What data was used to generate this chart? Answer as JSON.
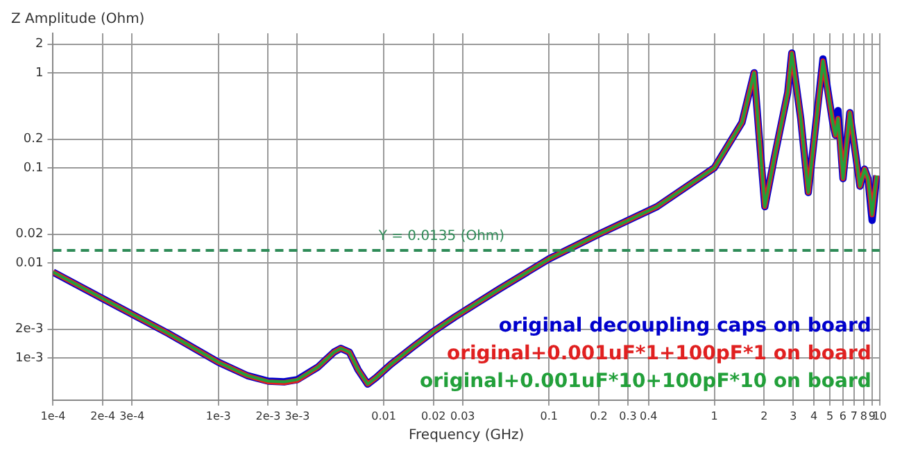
{
  "chart_data": {
    "type": "line",
    "xlabel": "Frequency (GHz)",
    "ylabel": "Z Amplitude (Ohm)",
    "log": "xy",
    "grid": true,
    "legend": "bottom right",
    "marker": "none",
    "line_style": "solid",
    "x": [
      0.0001,
      0.0002,
      0.0005,
      0.001,
      0.0015,
      0.002,
      0.0025,
      0.003,
      0.004,
      0.005,
      0.0055,
      0.0062,
      0.007,
      0.008,
      0.009,
      0.011,
      0.015,
      0.02,
      0.027,
      0.05,
      0.1,
      0.2,
      0.45,
      1,
      1.47,
      1.74,
      2.02,
      2.3,
      2.78,
      2.94,
      3.33,
      3.7,
      4.54,
      5.2,
      5.4,
      5.6,
      6.0,
      6.6,
      7.6,
      8.1,
      8.5,
      9.0,
      9.6
    ],
    "xlim": [
      0.0001,
      10
    ],
    "ylim": [
      0.00036,
      2.6
    ],
    "xticks": [
      {
        "value": 0.0001,
        "label": "1e-4"
      },
      {
        "value": 0.0002,
        "label": "2e-4"
      },
      {
        "value": 0.0003,
        "label": "3e-4"
      },
      {
        "value": 0.001,
        "label": "1e-3"
      },
      {
        "value": 0.002,
        "label": "2e-3"
      },
      {
        "value": 0.003,
        "label": "3e-3"
      },
      0.01,
      0.02,
      0.03,
      0.1,
      0.2,
      0.3,
      0.4,
      1,
      2,
      3,
      4,
      5,
      6,
      7,
      8,
      9,
      10
    ],
    "yticks": [
      {
        "value": 0.001,
        "label": "1e-3"
      },
      {
        "value": 0.002,
        "label": "2e-3"
      },
      0.01,
      0.02,
      0.1,
      0.2,
      1,
      2
    ],
    "series": [
      {
        "name": "original decoupling caps on board",
        "color": "#0000cc",
        "values": [
          0.008,
          0.0042,
          0.0018,
          0.0009,
          0.00065,
          0.00057,
          0.00056,
          0.00059,
          0.0008,
          0.00115,
          0.00126,
          0.00115,
          0.00075,
          0.00053,
          0.00062,
          0.00085,
          0.0013,
          0.0019,
          0.0027,
          0.0053,
          0.011,
          0.02,
          0.039,
          0.1,
          0.3,
          1.0,
          0.039,
          0.125,
          0.62,
          1.61,
          0.33,
          0.055,
          1.4,
          0.3,
          0.22,
          0.4,
          0.077,
          0.38,
          0.064,
          0.097,
          0.077,
          0.028,
          0.083
        ]
      },
      {
        "name": "original+0.001uF*1+100pF*1 on board",
        "color": "#e02020",
        "values": [
          0.008,
          0.0042,
          0.0018,
          0.0009,
          0.00065,
          0.00056,
          0.00055,
          0.00058,
          0.0008,
          0.00115,
          0.00126,
          0.00115,
          0.00075,
          0.00053,
          0.00062,
          0.00085,
          0.0013,
          0.0019,
          0.0027,
          0.0053,
          0.011,
          0.02,
          0.039,
          0.1,
          0.3,
          1.0,
          0.039,
          0.125,
          0.62,
          1.61,
          0.33,
          0.055,
          1.33,
          0.3,
          0.22,
          0.33,
          0.077,
          0.38,
          0.064,
          0.097,
          0.077,
          0.032,
          0.083
        ]
      },
      {
        "name": "original+0.001uF*10+100pF*10 on board",
        "color": "#22a03a",
        "values": [
          0.008,
          0.0042,
          0.0018,
          0.0009,
          0.00065,
          0.00057,
          0.00056,
          0.00059,
          0.0008,
          0.00115,
          0.00126,
          0.00115,
          0.00075,
          0.00053,
          0.00062,
          0.00085,
          0.0013,
          0.0019,
          0.0027,
          0.0053,
          0.011,
          0.02,
          0.039,
          0.1,
          0.3,
          1.0,
          0.039,
          0.125,
          0.62,
          1.61,
          0.33,
          0.055,
          1.33,
          0.3,
          0.22,
          0.33,
          0.077,
          0.38,
          0.064,
          0.097,
          0.077,
          0.032,
          0.083
        ]
      }
    ],
    "ref_lines": [
      {
        "axis": "y",
        "value": 0.0135,
        "label": "Y = 0.0135 (Ohm)",
        "color": "#2e8b57",
        "line_style": "dashed"
      }
    ]
  }
}
